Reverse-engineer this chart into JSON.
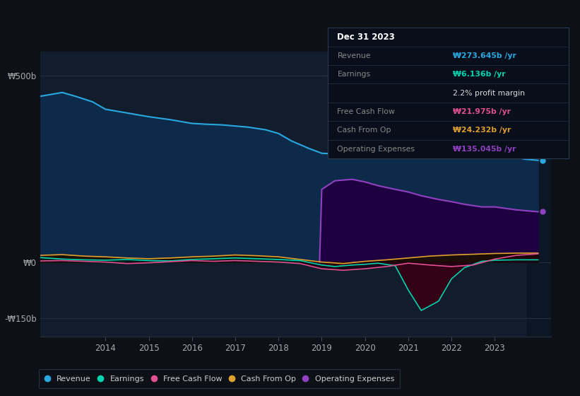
{
  "background_color": "#0d1117",
  "plot_bg_color": "#111c2d",
  "ytick_labels": [
    "₩500b",
    "₩0",
    "-₩150b"
  ],
  "ytick_values": [
    500,
    0,
    -150
  ],
  "xticks": [
    2014,
    2015,
    2016,
    2017,
    2018,
    2019,
    2020,
    2021,
    2022,
    2023
  ],
  "xlim": [
    2012.5,
    2024.3
  ],
  "ylim": [
    -200,
    565
  ],
  "series": {
    "revenue": {
      "color": "#29a8e0",
      "fill_color": "#0e2a4a",
      "label": "Revenue"
    },
    "earnings": {
      "color": "#00d4b0",
      "fill_color": "#003028",
      "label": "Earnings"
    },
    "free_cash_flow": {
      "color": "#e05090",
      "fill_color": "#3a0020",
      "label": "Free Cash Flow"
    },
    "cash_from_op": {
      "color": "#e0a030",
      "fill_color": "#2a1800",
      "label": "Cash From Op"
    },
    "operating_expenses": {
      "color": "#9040c0",
      "fill_color": "#1e0040",
      "label": "Operating Expenses"
    }
  },
  "revenue_x": [
    2012.5,
    2013.0,
    2013.3,
    2013.7,
    2014.0,
    2014.5,
    2015.0,
    2015.5,
    2016.0,
    2016.3,
    2016.7,
    2017.0,
    2017.3,
    2017.7,
    2018.0,
    2018.3,
    2018.7,
    2019.0,
    2019.3,
    2019.7,
    2020.0,
    2020.3,
    2020.7,
    2021.0,
    2021.3,
    2021.7,
    2022.0,
    2022.3,
    2022.7,
    2023.0,
    2023.3,
    2023.7,
    2024.0
  ],
  "revenue_y": [
    445,
    455,
    445,
    430,
    410,
    400,
    390,
    382,
    372,
    370,
    368,
    365,
    362,
    355,
    345,
    325,
    305,
    292,
    290,
    295,
    308,
    330,
    355,
    382,
    415,
    435,
    432,
    400,
    360,
    315,
    285,
    276,
    273
  ],
  "earnings_x": [
    2012.5,
    2013.0,
    2013.5,
    2014.0,
    2014.5,
    2015.0,
    2015.5,
    2016.0,
    2016.5,
    2017.0,
    2017.5,
    2018.0,
    2018.5,
    2019.0,
    2019.3,
    2019.7,
    2020.0,
    2020.3,
    2020.7,
    2021.0,
    2021.3,
    2021.7,
    2022.0,
    2022.3,
    2022.7,
    2023.0,
    2023.5,
    2024.0
  ],
  "earnings_y": [
    12,
    8,
    6,
    5,
    7,
    4,
    3,
    7,
    9,
    11,
    9,
    7,
    4,
    -8,
    -12,
    -8,
    -6,
    -3,
    -10,
    -75,
    -130,
    -105,
    -45,
    -15,
    2,
    5,
    6,
    6
  ],
  "fcf_x": [
    2012.5,
    2013.0,
    2013.5,
    2014.0,
    2014.5,
    2015.0,
    2015.5,
    2016.0,
    2016.5,
    2017.0,
    2017.5,
    2018.0,
    2018.5,
    2019.0,
    2019.5,
    2020.0,
    2020.5,
    2021.0,
    2021.5,
    2022.0,
    2022.5,
    2023.0,
    2023.5,
    2024.0
  ],
  "fcf_y": [
    3,
    4,
    2,
    0,
    -4,
    -2,
    1,
    4,
    2,
    4,
    2,
    0,
    -4,
    -18,
    -22,
    -18,
    -12,
    -3,
    -8,
    -12,
    -8,
    8,
    18,
    22
  ],
  "cop_x": [
    2012.5,
    2013.0,
    2013.5,
    2014.0,
    2014.5,
    2015.0,
    2015.5,
    2016.0,
    2016.5,
    2017.0,
    2017.5,
    2018.0,
    2018.5,
    2019.0,
    2019.5,
    2020.0,
    2020.5,
    2021.0,
    2021.5,
    2022.0,
    2022.5,
    2023.0,
    2023.5,
    2024.0
  ],
  "cop_y": [
    18,
    20,
    16,
    14,
    11,
    9,
    11,
    14,
    16,
    19,
    17,
    14,
    7,
    0,
    -4,
    2,
    6,
    11,
    16,
    19,
    21,
    23,
    24,
    24
  ],
  "opex_x": [
    2018.95,
    2019.0,
    2019.3,
    2019.7,
    2020.0,
    2020.3,
    2020.7,
    2021.0,
    2021.3,
    2021.7,
    2022.0,
    2022.3,
    2022.7,
    2023.0,
    2023.5,
    2024.0
  ],
  "opex_y": [
    0,
    195,
    218,
    222,
    215,
    205,
    195,
    188,
    178,
    168,
    162,
    155,
    148,
    148,
    140,
    135
  ],
  "info_box": {
    "rows": [
      {
        "label": "Dec 31 2023",
        "value": "",
        "value_color": "#ffffff",
        "is_header": true
      },
      {
        "label": "Revenue",
        "value": "₩273.645b /yr",
        "value_color": "#29a8e0"
      },
      {
        "label": "Earnings",
        "value": "₩6.136b /yr",
        "value_color": "#00d4b0"
      },
      {
        "label": "",
        "value": "2.2% profit margin",
        "value_color": "#dddddd",
        "bold": false
      },
      {
        "label": "Free Cash Flow",
        "value": "₩21.975b /yr",
        "value_color": "#e05090"
      },
      {
        "label": "Cash From Op",
        "value": "₩24.232b /yr",
        "value_color": "#e0a030"
      },
      {
        "label": "Operating Expenses",
        "value": "₩135.045b /yr",
        "value_color": "#9040c0"
      }
    ]
  },
  "legend": [
    {
      "label": "Revenue",
      "color": "#29a8e0"
    },
    {
      "label": "Earnings",
      "color": "#00d4b0"
    },
    {
      "label": "Free Cash Flow",
      "color": "#e05090"
    },
    {
      "label": "Cash From Op",
      "color": "#e0a030"
    },
    {
      "label": "Operating Expenses",
      "color": "#9040c0"
    }
  ]
}
